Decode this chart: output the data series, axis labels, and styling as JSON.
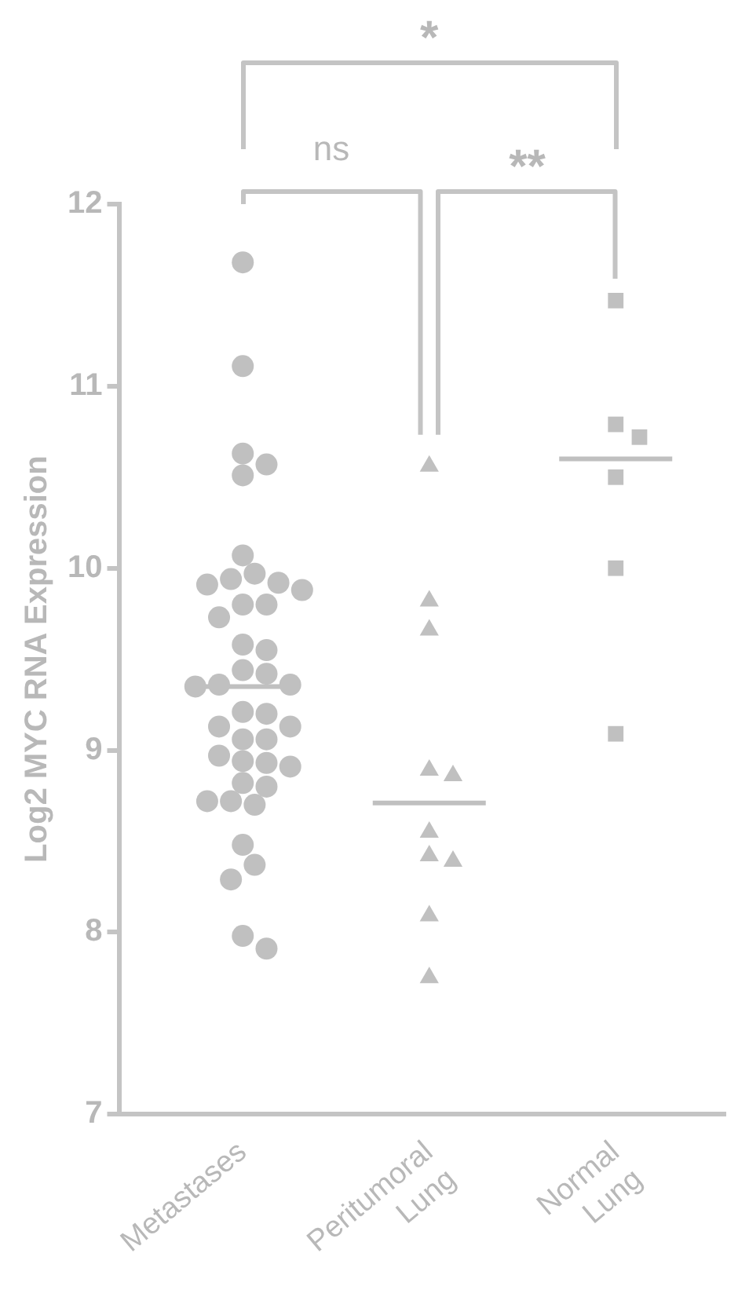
{
  "chart_data": {
    "type": "scatter",
    "ylabel": "Log2 MYC RNA Expression",
    "categories": [
      "Metastases",
      "Peritumoral Lung",
      "Normal Lung"
    ],
    "ylim": [
      7,
      12
    ],
    "yticks": [
      7,
      8,
      9,
      10,
      11,
      12
    ],
    "grid": false,
    "annotations": [
      "*",
      "ns",
      "**"
    ],
    "series": [
      {
        "type": "scatter",
        "marker": "circle",
        "color": "#c0c0c0",
        "x": [
          "Metastases",
          "Metastases",
          "Metastases",
          "Metastases",
          "Metastases",
          "Metastases",
          "Metastases",
          "Metastases",
          "Metastases",
          "Metastases",
          "Metastases",
          "Metastases",
          "Metastases",
          "Metastases",
          "Metastases",
          "Metastases",
          "Metastases",
          "Metastases",
          "Metastases",
          "Metastases",
          "Metastases",
          "Metastases",
          "Metastases",
          "Metastases",
          "Metastases",
          "Metastases",
          "Metastases",
          "Metastases",
          "Metastases",
          "Metastases",
          "Metastases",
          "Metastases",
          "Metastases",
          "Metastases",
          "Metastases",
          "Metastases",
          "Metastases",
          "Metastases",
          "Metastases",
          "Metastases",
          "Metastases"
        ],
        "values": [
          11.68,
          11.11,
          10.63,
          10.57,
          10.51,
          10.07,
          9.97,
          9.94,
          9.92,
          9.91,
          9.88,
          9.8,
          9.8,
          9.73,
          9.58,
          9.55,
          9.44,
          9.42,
          9.36,
          9.36,
          9.35,
          9.21,
          9.2,
          9.13,
          9.13,
          9.06,
          9.06,
          8.97,
          8.94,
          8.93,
          8.91,
          8.82,
          8.8,
          8.72,
          8.72,
          8.7,
          8.48,
          8.37,
          8.29,
          7.98,
          7.91
        ]
      },
      {
        "type": "scatter",
        "marker": "triangle",
        "color": "#c0c0c0",
        "x": [
          "Peritumoral Lung",
          "Peritumoral Lung",
          "Peritumoral Lung",
          "Peritumoral Lung",
          "Peritumoral Lung",
          "Peritumoral Lung",
          "Peritumoral Lung",
          "Peritumoral Lung",
          "Peritumoral Lung",
          "Peritumoral Lung"
        ],
        "values": [
          10.56,
          9.82,
          9.66,
          8.89,
          8.86,
          8.55,
          8.42,
          8.39,
          8.09,
          7.75
        ]
      },
      {
        "type": "scatter",
        "marker": "square",
        "color": "#c0c0c0",
        "x": [
          "Normal Lung",
          "Normal Lung",
          "Normal Lung",
          "Normal Lung",
          "Normal Lung",
          "Normal Lung"
        ],
        "values": [
          11.47,
          10.79,
          10.72,
          10.5,
          10.0,
          9.09
        ]
      },
      {
        "type": "box",
        "color": "#c0c0c0",
        "boxes": [
          {
            "low": 9.35,
            "q1": 9.35,
            "median": 9.35,
            "q3": 9.35,
            "high": 9.35
          },
          {
            "low": 8.71,
            "q1": 8.71,
            "median": 8.71,
            "q3": 8.71,
            "high": 8.71
          },
          {
            "low": 10.6,
            "q1": 10.6,
            "median": 10.6,
            "q3": 10.6,
            "high": 10.6
          }
        ]
      }
    ]
  }
}
